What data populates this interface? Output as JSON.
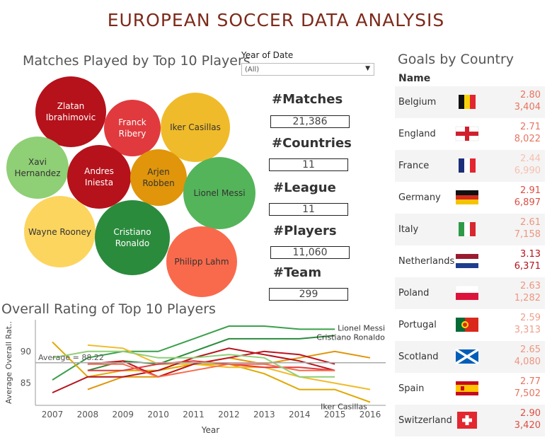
{
  "dashboard_title": "EUROPEAN SOCCER DATA ANALYSIS",
  "bubble_section": {
    "title": "Matches Played by Top 10 Players",
    "players": [
      {
        "name": "Zlatan\nIbrahimovic",
        "color": "#b5121b",
        "text_color": "#ffffff"
      },
      {
        "name": "Franck\nRibery",
        "color": "#e03a3e",
        "text_color": "#ffffff"
      },
      {
        "name": "Iker Casillas",
        "color": "#f0bb2a",
        "text_color": "#333333"
      },
      {
        "name": "Xavi\nHernandez",
        "color": "#8fcf75",
        "text_color": "#333333"
      },
      {
        "name": "Andres\nIniesta",
        "color": "#b5121b",
        "text_color": "#ffffff"
      },
      {
        "name": "Arjen\nRobben",
        "color": "#e0950a",
        "text_color": "#333333"
      },
      {
        "name": "Lionel Messi",
        "color": "#54b45a",
        "text_color": "#333333"
      },
      {
        "name": "Wayne Rooney",
        "color": "#fcd55f",
        "text_color": "#333333"
      },
      {
        "name": "Cristiano\nRonaldo",
        "color": "#2b8b3c",
        "text_color": "#ffffff"
      },
      {
        "name": "Philipp Lahm",
        "color": "#f96a4c",
        "text_color": "#333333"
      }
    ]
  },
  "filter": {
    "label": "Year of Date",
    "selected": "(All)"
  },
  "kpis": [
    {
      "label": "#Matches",
      "value": "21,386"
    },
    {
      "label": "#Countries",
      "value": "11"
    },
    {
      "label": "#League",
      "value": "11"
    },
    {
      "label": "#Players",
      "value": "11,060"
    },
    {
      "label": "#Team",
      "value": "299"
    }
  ],
  "goals_section": {
    "title": "Goals by Country",
    "column_header": "Name",
    "rows": [
      {
        "country": "Belgium",
        "avg": "2.80",
        "total": "3,404",
        "flag": "belgium-flag",
        "color": "#e8745f"
      },
      {
        "country": "England",
        "avg": "2.71",
        "total": "8,022",
        "flag": "england-flag",
        "color": "#e8745f"
      },
      {
        "country": "France",
        "avg": "2.44",
        "total": "6,990",
        "flag": "france-flag",
        "color": "#f7c0b0"
      },
      {
        "country": "Germany",
        "avg": "2.91",
        "total": "6,897",
        "flag": "germany-flag",
        "color": "#dc4f44"
      },
      {
        "country": "Italy",
        "avg": "2.61",
        "total": "7,158",
        "flag": "italy-flag",
        "color": "#ef9580"
      },
      {
        "country": "Netherlands",
        "avg": "3.13",
        "total": "6,371",
        "flag": "netherlands-flag",
        "color": "#b5121b"
      },
      {
        "country": "Poland",
        "avg": "2.63",
        "total": "1,282",
        "flag": "poland-flag",
        "color": "#ef9580"
      },
      {
        "country": "Portugal",
        "avg": "2.59",
        "total": "3,313",
        "flag": "portugal-flag",
        "color": "#efa08c"
      },
      {
        "country": "Scotland",
        "avg": "2.65",
        "total": "4,080",
        "flag": "scotland-flag",
        "color": "#ef9580"
      },
      {
        "country": "Spain",
        "avg": "2.77",
        "total": "7,502",
        "flag": "spain-flag",
        "color": "#e8745f"
      },
      {
        "country": "Switzerland",
        "avg": "2.90",
        "total": "3,420",
        "flag": "switzerland-flag",
        "color": "#dc4f44"
      }
    ]
  },
  "chart_data": {
    "type": "line",
    "title": "Overall Rating of Top 10 Players",
    "xlabel": "Year",
    "ylabel": "Average Overall Rat..",
    "x": [
      2007,
      2008,
      2009,
      2010,
      2011,
      2012,
      2013,
      2014,
      2015,
      2016
    ],
    "ylim": [
      81.5,
      95
    ],
    "yticks": [
      85,
      90
    ],
    "average_line": {
      "label": "Average = 88.22",
      "value": 88.22
    },
    "series": [
      {
        "name": "Lionel Messi",
        "color": "#3aa04a",
        "labeled": true,
        "values": [
          85.5,
          89,
          90,
          90,
          92,
          94,
          94,
          93.5,
          93.5,
          null
        ]
      },
      {
        "name": "Cristiano Ronaldo",
        "color": "#2b8b3c",
        "labeled": true,
        "values": [
          null,
          87,
          88.5,
          88,
          90,
          92,
          92,
          92,
          92.5,
          null
        ]
      },
      {
        "name": "Iker Casillas",
        "color": "#e0a800",
        "labeled": true,
        "values": [
          91.5,
          86,
          87,
          87,
          88,
          88,
          86.5,
          84,
          84,
          82
        ]
      },
      {
        "color": "#f0bb2a",
        "values": [
          null,
          91,
          90.5,
          88,
          88,
          87.5,
          87.5,
          86,
          85,
          84
        ]
      },
      {
        "color": "#e0950a",
        "values": [
          null,
          84,
          86,
          86,
          88,
          89,
          88,
          89,
          90,
          89
        ]
      },
      {
        "color": "#b5121b",
        "values": [
          83.5,
          86,
          86,
          87,
          89,
          90.5,
          89.5,
          88.5,
          87,
          null
        ]
      },
      {
        "color": "#c0141e",
        "values": [
          null,
          88,
          88.5,
          86,
          88,
          89,
          90,
          89.5,
          88,
          null
        ]
      },
      {
        "color": "#e03a3e",
        "values": [
          null,
          87,
          87,
          88,
          88.5,
          88,
          87.5,
          87.5,
          87,
          null
        ]
      },
      {
        "color": "#f96a4c",
        "values": [
          null,
          88,
          88,
          86,
          87,
          88,
          88,
          87,
          87,
          null
        ]
      },
      {
        "color": "#8fcf75",
        "values": [
          89,
          90,
          90,
          89,
          89,
          89.5,
          89,
          86,
          86,
          null
        ]
      }
    ]
  }
}
